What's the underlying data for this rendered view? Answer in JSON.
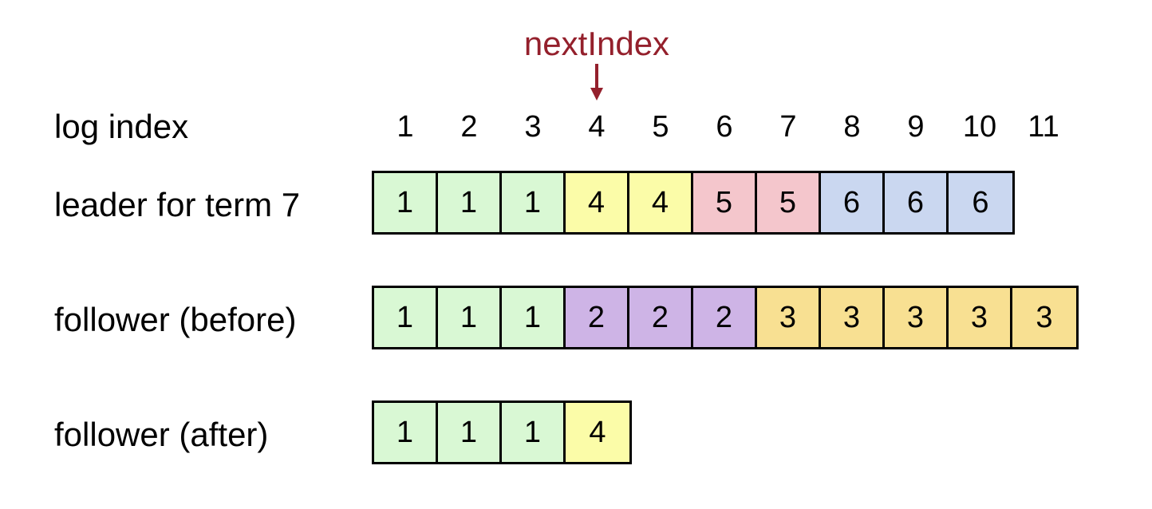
{
  "colors": {
    "next_index": "#94202c",
    "term_1": "#d9f8d4",
    "term_2": "#ceb4e6",
    "term_3": "#f8e092",
    "term_4": "#fbfca8",
    "term_5": "#f4c6cc",
    "term_6": "#cad7f0",
    "border": "#000000"
  },
  "next_index": {
    "label": "nextIndex",
    "points_to_log_index": 4
  },
  "index_row": {
    "label": "log index",
    "indices": [
      "1",
      "2",
      "3",
      "4",
      "5",
      "6",
      "7",
      "8",
      "9",
      "10",
      "11"
    ]
  },
  "rows": [
    {
      "name": "leader",
      "label": "leader for term 7",
      "entries": [
        1,
        1,
        1,
        4,
        4,
        5,
        5,
        6,
        6,
        6
      ]
    },
    {
      "name": "follower-before",
      "label": "follower (before)",
      "entries": [
        1,
        1,
        1,
        2,
        2,
        2,
        3,
        3,
        3,
        3,
        3
      ]
    },
    {
      "name": "follower-after",
      "label": "follower (after)",
      "entries": [
        1,
        1,
        1,
        4
      ]
    }
  ]
}
